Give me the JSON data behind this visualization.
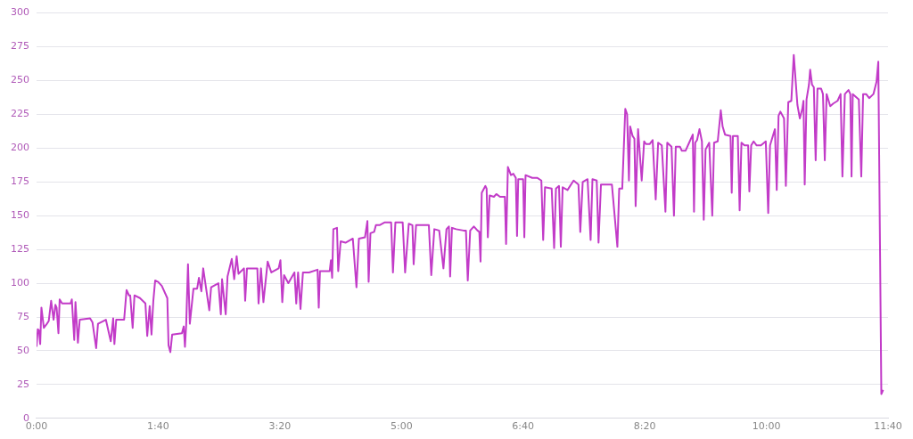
{
  "chart_data": {
    "type": "line",
    "xlim": [
      0,
      700
    ],
    "ylim": [
      0,
      300
    ],
    "xticks": [
      {
        "value": 0,
        "label": "0:00"
      },
      {
        "value": 100,
        "label": "1:40"
      },
      {
        "value": 200,
        "label": "3:20"
      },
      {
        "value": 300,
        "label": "5:00"
      },
      {
        "value": 400,
        "label": "6:40"
      },
      {
        "value": 500,
        "label": "8:20"
      },
      {
        "value": 600,
        "label": "10:00"
      },
      {
        "value": 700,
        "label": "11:40"
      }
    ],
    "yticks": [
      0,
      25,
      50,
      75,
      100,
      125,
      150,
      175,
      200,
      225,
      250,
      275,
      300
    ],
    "grid": "y",
    "legend": false,
    "marker": "none",
    "line_style": "solid",
    "series": [
      {
        "color": "#c23bc8",
        "x": [
          0,
          1,
          2,
          3,
          4,
          6,
          8.5,
          10,
          12,
          14,
          15.5,
          16.5,
          18,
          19,
          21,
          28,
          29,
          31,
          32,
          34,
          35.5,
          44,
          46,
          49,
          50.5,
          57,
          61,
          63,
          64,
          65.5,
          72,
          74,
          76,
          77,
          79,
          80.5,
          85,
          89.5,
          91,
          93,
          94.5,
          96,
          97.5,
          100,
          103,
          107.5,
          108.5,
          110,
          111.5,
          119.5,
          121,
          122,
          123,
          124.5,
          126,
          129,
          132,
          133.5,
          135.5,
          137,
          142,
          143.5,
          149.5,
          151.5,
          152.5,
          155.5,
          157,
          160.5,
          162.5,
          164.5,
          166,
          170.5,
          171.5,
          173,
          181.5,
          182.5,
          184.5,
          186.5,
          190,
          193,
          199,
          200.5,
          202,
          203.5,
          207,
          212,
          213.5,
          215,
          217,
          219,
          224,
          231,
          232,
          233,
          241,
          242,
          243,
          244,
          247,
          248,
          250,
          254,
          260,
          263,
          265,
          270,
          272,
          273,
          274.5,
          277.5,
          279,
          282,
          286,
          291.5,
          293,
          295,
          301,
          303,
          306,
          309,
          310,
          312,
          322.5,
          324.5,
          327,
          331,
          334.5,
          337,
          339,
          340,
          341.5,
          345,
          351,
          353,
          354.5,
          356.5,
          359.5,
          362.5,
          364,
          365,
          366,
          369,
          370,
          371,
          372.5,
          376,
          378,
          381,
          385,
          386,
          387.5,
          390,
          392,
          394,
          395,
          396,
          400,
          401,
          402,
          407.5,
          411.5,
          415,
          416.5,
          418,
          423.5,
          425.5,
          427,
          429.5,
          431,
          432.5,
          436.5,
          441.5,
          445.5,
          447,
          449,
          453,
          455.5,
          457,
          460.5,
          462,
          464,
          473,
          477.5,
          479,
          481.5,
          484,
          485.5,
          487,
          488,
          490,
          491.5,
          492.5,
          494.5,
          497.5,
          499.5,
          501,
          504,
          506.5,
          509,
          511,
          514,
          517,
          518.5,
          522,
          524,
          525.5,
          529,
          530.5,
          533.5,
          536.5,
          539.5,
          540.5,
          541.5,
          543,
          545,
          547,
          548.5,
          550,
          553,
          555.5,
          557,
          560,
          562.5,
          564,
          566,
          570.5,
          571.5,
          572.5,
          576.5,
          578,
          579.5,
          582,
          585,
          586,
          587.5,
          589.5,
          592,
          595.5,
          599.5,
          601.5,
          603,
          607,
          608.5,
          610,
          611.5,
          614.5,
          616,
          618,
          620.5,
          622.5,
          625.5,
          627.5,
          629.5,
          630.5,
          631.5,
          633,
          635,
          636,
          637.5,
          639,
          640.5,
          642,
          645,
          646.5,
          648,
          649.5,
          652.5,
          655,
          658.5,
          661,
          662.5,
          664.5,
          667.5,
          669,
          670,
          671,
          676,
          678,
          679.5,
          682,
          684.5,
          688,
          690.5,
          692,
          694.5,
          696
        ],
        "values": [
          53,
          66,
          65,
          55,
          82,
          67,
          70,
          72,
          87,
          73,
          84,
          82,
          63,
          88,
          85,
          85,
          88,
          58,
          86,
          56,
          73,
          74,
          71,
          52,
          70,
          73,
          57,
          74,
          55,
          73,
          73,
          95,
          91,
          91,
          67,
          91,
          89,
          85,
          61,
          83,
          62,
          87,
          102,
          101,
          98,
          89,
          54,
          49,
          62,
          63,
          68,
          53,
          69,
          114,
          70,
          96,
          96,
          104,
          94,
          111,
          80,
          97,
          100,
          77,
          103,
          77,
          105,
          118,
          103,
          120,
          107,
          111,
          87,
          111,
          111,
          85,
          111,
          86,
          116,
          108,
          111,
          117,
          86,
          106,
          100,
          108,
          85,
          108,
          81,
          108,
          108,
          110,
          82,
          109,
          109,
          117,
          104,
          140,
          141,
          109,
          131,
          130,
          133,
          97,
          133,
          134,
          146,
          101,
          137,
          138,
          143,
          143,
          145,
          145,
          108,
          145,
          145,
          108,
          144,
          143,
          114,
          143,
          143,
          106,
          140,
          139,
          111,
          140,
          142,
          105,
          141,
          140,
          139,
          139,
          102,
          139,
          142,
          139,
          138,
          116,
          167,
          172,
          170,
          134,
          165,
          164,
          166,
          164,
          164,
          129,
          186,
          180,
          181,
          178,
          135,
          177,
          177,
          134,
          180,
          178,
          178,
          176,
          132,
          171,
          170,
          126,
          170,
          172,
          127,
          171,
          169,
          176,
          173,
          138,
          175,
          177,
          132,
          177,
          176,
          130,
          173,
          173,
          127,
          170,
          170,
          229,
          225,
          176,
          216,
          209,
          207,
          157,
          214,
          176,
          205,
          203,
          203,
          206,
          162,
          204,
          202,
          153,
          204,
          201,
          150,
          201,
          201,
          198,
          198,
          204,
          210,
          153,
          204,
          206,
          214,
          205,
          147,
          199,
          204,
          150,
          204,
          205,
          228,
          216,
          210,
          209,
          167,
          209,
          209,
          154,
          204,
          202,
          202,
          168,
          202,
          205,
          202,
          202,
          205,
          152,
          202,
          214,
          169,
          224,
          227,
          222,
          172,
          234,
          235,
          269,
          232,
          222,
          229,
          235,
          173,
          236,
          247,
          258,
          247,
          245,
          191,
          244,
          244,
          240,
          191,
          240,
          231,
          233,
          235,
          240,
          179,
          240,
          243,
          240,
          179,
          240,
          236,
          179,
          240,
          240,
          237,
          240,
          249,
          264,
          18,
          21
        ]
      }
    ]
  }
}
